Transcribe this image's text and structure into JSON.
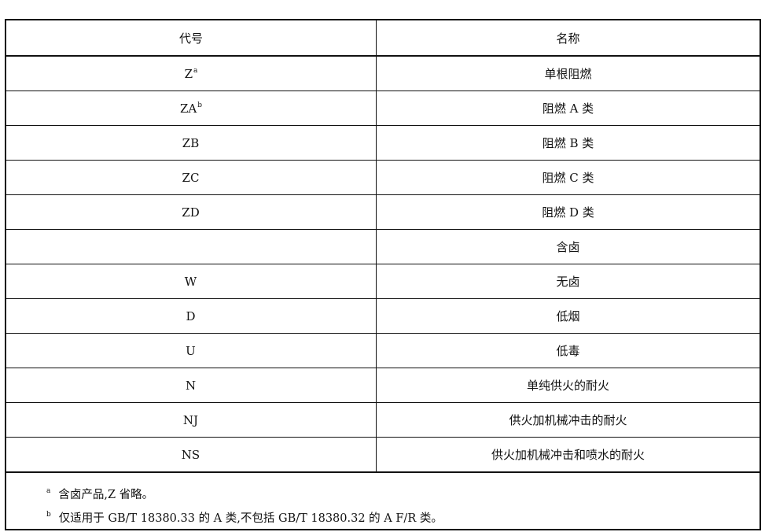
{
  "table": {
    "headers": [
      "代号",
      "名称"
    ],
    "rows": [
      {
        "code": "Z",
        "sup": "a",
        "name": "单根阻燃"
      },
      {
        "code": "ZA",
        "sup": "b",
        "name": "阻燃 A 类"
      },
      {
        "code": "ZB",
        "sup": "",
        "name": "阻燃 B 类"
      },
      {
        "code": "ZC",
        "sup": "",
        "name": "阻燃 C 类"
      },
      {
        "code": "ZD",
        "sup": "",
        "name": "阻燃 D 类"
      },
      {
        "code": "",
        "sup": "",
        "name": "含卤"
      },
      {
        "code": "W",
        "sup": "",
        "name": "无卤"
      },
      {
        "code": "D",
        "sup": "",
        "name": "低烟"
      },
      {
        "code": "U",
        "sup": "",
        "name": "低毒"
      },
      {
        "code": "N",
        "sup": "",
        "name": "单纯供火的耐火"
      },
      {
        "code": "NJ",
        "sup": "",
        "name": "供火加机械冲击的耐火"
      },
      {
        "code": "NS",
        "sup": "",
        "name": "供火加机械冲击和喷水的耐火"
      }
    ]
  },
  "notes": [
    {
      "mark": "a",
      "text": "含卤产品,Z 省略。"
    },
    {
      "mark": "b",
      "text": "仅适用于 GB/T 18380.33 的 A 类,不包括 GB/T 18380.32 的 A F/R 类。"
    }
  ]
}
